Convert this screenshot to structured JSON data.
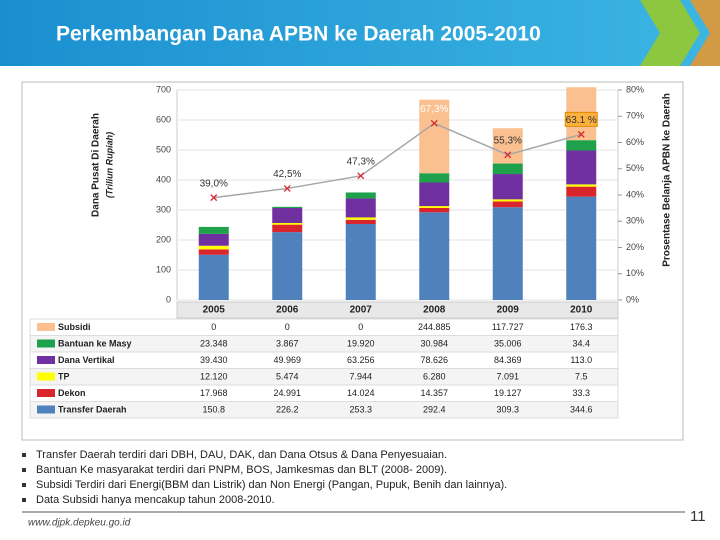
{
  "title": "Perkembangan Dana APBN ke Daerah 2005-2010",
  "chart_data": {
    "type": "bar",
    "stacked": true,
    "categories": [
      "2005",
      "2006",
      "2007",
      "2008",
      "2009",
      "2010"
    ],
    "ylabel": "Dana Pusat Di Daerah",
    "ylabel_note": "(Triliun Rupiah)",
    "y2label": "Prosentase Belanja APBN ke Daerah",
    "ylim": [
      0,
      700
    ],
    "yticks": [
      0,
      100,
      200,
      300,
      400,
      500,
      600,
      700
    ],
    "y2lim": [
      0,
      80
    ],
    "y2ticks": [
      {
        "value": 0,
        "label": "0%"
      },
      {
        "value": 10,
        "label": "10%"
      },
      {
        "value": 20,
        "label": "20%"
      },
      {
        "value": 30,
        "label": "30%"
      },
      {
        "value": 40,
        "label": "40%"
      },
      {
        "value": 50,
        "label": "50%"
      },
      {
        "value": 60,
        "label": "60%"
      },
      {
        "value": 70,
        "label": "70%"
      },
      {
        "value": 80,
        "label": "80%"
      }
    ],
    "grid": true,
    "series": [
      {
        "name": "Transfer Daerah",
        "color": "#4f81bd",
        "values": [
          150.8,
          226.2,
          253.3,
          292.4,
          309.3,
          344.6
        ],
        "value_labels": [
          "150.8",
          "226.2",
          "253.3",
          "292.4",
          "309.3",
          "344.6"
        ]
      },
      {
        "name": "Dekon",
        "color": "#d9262c",
        "values": [
          17.968,
          24.991,
          14.024,
          14.357,
          19.127,
          33.3
        ],
        "value_labels": [
          "17.968",
          "24.991",
          "14.024",
          "14.357",
          "19.127",
          "33.3"
        ]
      },
      {
        "name": "TP",
        "color": "#ffff00",
        "values": [
          12.12,
          5.474,
          7.944,
          6.28,
          7.091,
          7.5
        ],
        "value_labels": [
          "12.120",
          "5.474",
          "7.944",
          "6.280",
          "7.091",
          "7.5"
        ]
      },
      {
        "name": "Dana Vertikal",
        "color": "#7030a0",
        "values": [
          39.43,
          49.969,
          63.256,
          78.626,
          84.369,
          113.0
        ],
        "value_labels": [
          "39.430",
          "49.969",
          "63.256",
          "78.626",
          "84.369",
          "113.0"
        ]
      },
      {
        "name": "Bantuan ke Masy",
        "color": "#1fa14b",
        "values": [
          23.348,
          3.867,
          19.92,
          30.984,
          35.006,
          34.4
        ],
        "value_labels": [
          "23.348",
          "3.867",
          "19.920",
          "30.984",
          "35.006",
          "34.4"
        ]
      },
      {
        "name": "Subsidi",
        "color": "#fac090",
        "values": [
          0,
          0,
          0,
          244.885,
          117.727,
          176.3
        ],
        "value_labels": [
          "0",
          "0",
          "0",
          "244.885",
          "117.727",
          "176.3"
        ]
      },
      {
        "type": "line",
        "axis": "y2",
        "color": "#a6a6a6",
        "marker_color": "#d9262c",
        "values": [
          39.0,
          42.5,
          47.3,
          67.3,
          55.3,
          63.1
        ],
        "value_labels": [
          "39,0%",
          "42,5%",
          "47,3%",
          "67,3%",
          "55,3%",
          "63.1 %"
        ]
      }
    ]
  },
  "notes": [
    "Transfer Daerah terdiri dari DBH, DAU, DAK, dan Dana Otsus & Dana Penyesuaian.",
    "Bantuan Ke masyarakat terdiri dari PNPM, BOS, Jamkesmas dan BLT (2008- 2009).",
    "Subsidi Terdiri dari Energi(BBM dan Listrik) dan Non Energi (Pangan, Pupuk, Benih dan lainnya).",
    "Data Subsidi hanya mencakup tahun 2008-2010."
  ],
  "footer": "www.djpk.depkeu.go.id",
  "page_number": "11"
}
